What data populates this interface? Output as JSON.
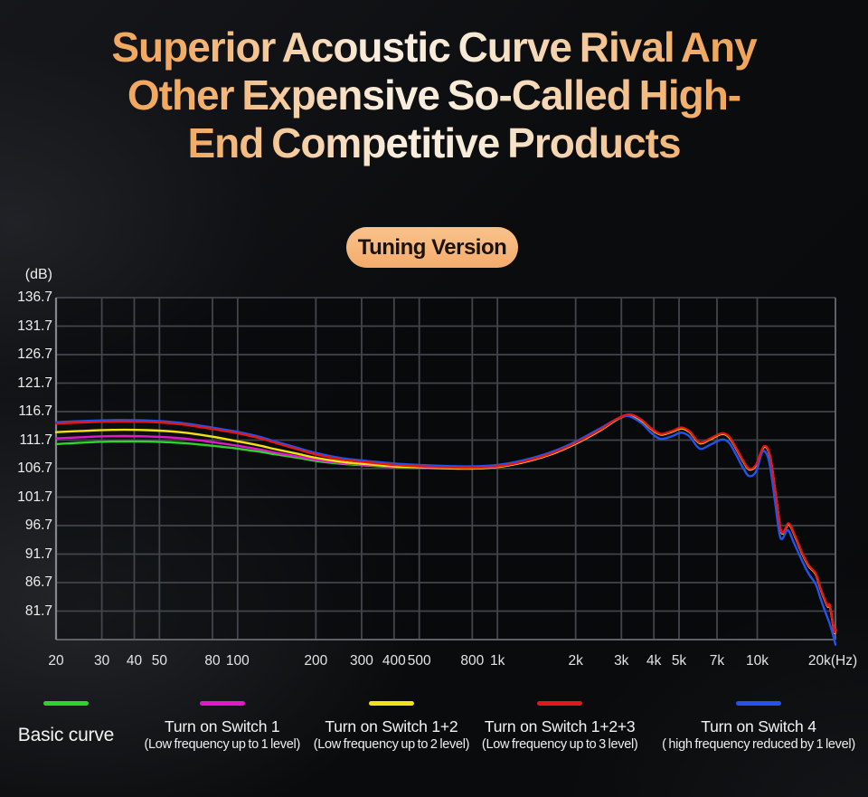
{
  "title": {
    "lines": [
      "Superior Acoustic Curve Rival Any",
      "Other Expensive So-Called High-",
      "End Competitive Products"
    ]
  },
  "badge": {
    "label": "Tuning Version"
  },
  "chart_data": {
    "type": "line",
    "x_scale": "log",
    "grid": true,
    "y_unit_label": "(dB)",
    "x_unit_label": "(Hz)",
    "y_range": [
      76.7,
      136.7
    ],
    "x_range": [
      20,
      20000
    ],
    "y_tick_labels": [
      "136.7",
      "131.7",
      "126.7",
      "121.7",
      "116.7",
      "111.7",
      "106.7",
      "101.7",
      "96.7",
      "91.7",
      "86.7",
      "81.7"
    ],
    "x_ticks": [
      {
        "f": 20,
        "label": "20"
      },
      {
        "f": 30,
        "label": "30"
      },
      {
        "f": 40,
        "label": "40"
      },
      {
        "f": 50,
        "label": "50"
      },
      {
        "f": 80,
        "label": "80"
      },
      {
        "f": 100,
        "label": "100"
      },
      {
        "f": 200,
        "label": "200"
      },
      {
        "f": 300,
        "label": "300"
      },
      {
        "f": 400,
        "label": "400"
      },
      {
        "f": 500,
        "label": "500"
      },
      {
        "f": 800,
        "label": "800"
      },
      {
        "f": 1000,
        "label": "1k"
      },
      {
        "f": 2000,
        "label": "2k"
      },
      {
        "f": 3000,
        "label": "3k"
      },
      {
        "f": 4000,
        "label": "4k"
      },
      {
        "f": 5000,
        "label": "5k"
      },
      {
        "f": 7000,
        "label": "7k"
      },
      {
        "f": 10000,
        "label": "10k"
      },
      {
        "f": 20000,
        "label": "20k"
      }
    ],
    "series": [
      {
        "name": "Basic curve",
        "color": "#2bd52b",
        "merges_with": "Turn on Switch 1+2+3",
        "merge_offset_db": -0.12,
        "points": [
          [
            20,
            111.0
          ],
          [
            25,
            111.25
          ],
          [
            33,
            111.45
          ],
          [
            45,
            111.45
          ],
          [
            60,
            111.2
          ],
          [
            80,
            110.7
          ],
          [
            100,
            110.2
          ],
          [
            120,
            109.7
          ],
          [
            140,
            109.2
          ],
          [
            170,
            108.6
          ],
          [
            200,
            108.05
          ],
          [
            250,
            107.55
          ],
          [
            300,
            107.3
          ],
          [
            400,
            106.95
          ],
          [
            500,
            106.85
          ],
          [
            650,
            106.74
          ],
          [
            800,
            106.7
          ]
        ]
      },
      {
        "name": "Turn on Switch 1",
        "color": "#e318cb",
        "merges_with": "Turn on Switch 1+2+3",
        "merge_offset_db": -0.12,
        "points": [
          [
            20,
            112.0
          ],
          [
            25,
            112.2
          ],
          [
            33,
            112.4
          ],
          [
            45,
            112.35
          ],
          [
            60,
            112.05
          ],
          [
            80,
            111.35
          ],
          [
            100,
            110.7
          ],
          [
            120,
            110.1
          ],
          [
            140,
            109.5
          ],
          [
            170,
            108.85
          ],
          [
            200,
            108.25
          ],
          [
            250,
            107.7
          ],
          [
            300,
            107.4
          ],
          [
            400,
            107.0
          ],
          [
            500,
            106.88
          ],
          [
            650,
            106.76
          ],
          [
            800,
            106.72
          ]
        ]
      },
      {
        "name": "Turn on Switch 1+2",
        "color": "#f2e214",
        "merges_with": "Turn on Switch 1+2+3",
        "merge_offset_db": -0.12,
        "points": [
          [
            20,
            113.1
          ],
          [
            25,
            113.3
          ],
          [
            33,
            113.5
          ],
          [
            45,
            113.45
          ],
          [
            60,
            113.1
          ],
          [
            80,
            112.3
          ],
          [
            100,
            111.5
          ],
          [
            120,
            110.8
          ],
          [
            140,
            110.1
          ],
          [
            170,
            109.3
          ],
          [
            200,
            108.6
          ],
          [
            250,
            107.9
          ],
          [
            300,
            107.55
          ],
          [
            400,
            107.1
          ],
          [
            500,
            106.95
          ],
          [
            650,
            106.78
          ],
          [
            800,
            106.73
          ]
        ]
      },
      {
        "name": "Turn on Switch 4",
        "color": "#2253ee",
        "points": [
          [
            20,
            114.85
          ],
          [
            25,
            115.05
          ],
          [
            33,
            115.2
          ],
          [
            45,
            115.15
          ],
          [
            60,
            114.75
          ],
          [
            80,
            113.9
          ],
          [
            100,
            113.15
          ],
          [
            120,
            112.35
          ],
          [
            140,
            111.45
          ],
          [
            170,
            110.35
          ],
          [
            200,
            109.45
          ],
          [
            250,
            108.55
          ],
          [
            300,
            108.15
          ],
          [
            400,
            107.6
          ],
          [
            500,
            107.35
          ],
          [
            650,
            107.15
          ],
          [
            800,
            107.1
          ],
          [
            1000,
            107.35
          ],
          [
            1250,
            108.15
          ],
          [
            1600,
            109.55
          ],
          [
            2000,
            111.45
          ],
          [
            2500,
            113.85
          ],
          [
            2900,
            115.45
          ],
          [
            3200,
            115.9
          ],
          [
            3600,
            114.6
          ],
          [
            3900,
            113.0
          ],
          [
            4250,
            111.9
          ],
          [
            4700,
            112.4
          ],
          [
            5100,
            113.0
          ],
          [
            5500,
            112.3
          ],
          [
            6000,
            110.2
          ],
          [
            6600,
            110.9
          ],
          [
            7300,
            111.8
          ],
          [
            7800,
            111.2
          ],
          [
            8300,
            109.1
          ],
          [
            8800,
            106.9
          ],
          [
            9300,
            105.4
          ],
          [
            9900,
            106.2
          ],
          [
            10500,
            109.7
          ],
          [
            11100,
            108.0
          ],
          [
            11700,
            101.0
          ],
          [
            12300,
            94.5
          ],
          [
            13100,
            95.9
          ],
          [
            13800,
            93.8
          ],
          [
            15000,
            90.2
          ],
          [
            15800,
            88.2
          ],
          [
            16800,
            86.4
          ],
          [
            17500,
            84.0
          ],
          [
            18300,
            81.5
          ],
          [
            19000,
            79.5
          ],
          [
            19500,
            77.8
          ],
          [
            20000,
            75.8
          ]
        ]
      },
      {
        "name": "Turn on Switch 1+2+3",
        "color": "#e51616",
        "points": [
          [
            20,
            114.6
          ],
          [
            25,
            114.8
          ],
          [
            33,
            114.95
          ],
          [
            45,
            114.9
          ],
          [
            60,
            114.5
          ],
          [
            80,
            113.65
          ],
          [
            100,
            112.9
          ],
          [
            120,
            112.1
          ],
          [
            140,
            111.2
          ],
          [
            170,
            110.1
          ],
          [
            200,
            109.2
          ],
          [
            250,
            108.3
          ],
          [
            300,
            107.9
          ],
          [
            400,
            107.35
          ],
          [
            500,
            107.1
          ],
          [
            650,
            106.9
          ],
          [
            800,
            106.85
          ],
          [
            1000,
            107.1
          ],
          [
            1250,
            107.9
          ],
          [
            1600,
            109.3
          ],
          [
            2000,
            111.2
          ],
          [
            2500,
            113.6
          ],
          [
            2900,
            115.5
          ],
          [
            3250,
            116.2
          ],
          [
            3600,
            115.2
          ],
          [
            3900,
            113.8
          ],
          [
            4250,
            112.8
          ],
          [
            4700,
            113.3
          ],
          [
            5100,
            113.9
          ],
          [
            5500,
            113.2
          ],
          [
            6000,
            111.3
          ],
          [
            6600,
            112.0
          ],
          [
            7300,
            112.9
          ],
          [
            7800,
            112.3
          ],
          [
            8300,
            110.3
          ],
          [
            8800,
            108.2
          ],
          [
            9300,
            106.7
          ],
          [
            9900,
            107.4
          ],
          [
            10600,
            110.6
          ],
          [
            11200,
            109.0
          ],
          [
            11800,
            102.0
          ],
          [
            12400,
            95.6
          ],
          [
            13200,
            97.1
          ],
          [
            13900,
            95.2
          ],
          [
            15000,
            91.6
          ],
          [
            15800,
            89.7
          ],
          [
            16800,
            88.3
          ],
          [
            17500,
            85.8
          ],
          [
            18300,
            83.5
          ],
          [
            18700,
            82.6
          ],
          [
            19000,
            82.8
          ],
          [
            19500,
            80.0
          ],
          [
            19800,
            78.0
          ],
          [
            20000,
            78.5
          ]
        ]
      }
    ]
  },
  "legend": [
    {
      "label": "Basic curve",
      "sub": "",
      "color": "#2bd52b"
    },
    {
      "label": "Turn on Switch 1",
      "sub": "(Low frequency up to 1 level)",
      "color": "#e318cb"
    },
    {
      "label": "Turn on Switch 1+2",
      "sub": "(Low frequency up to 2 level)",
      "color": "#f2e214"
    },
    {
      "label": "Turn on Switch 1+2+3",
      "sub": "(Low frequency up to 3 level)",
      "color": "#e51616"
    },
    {
      "label": "Turn on Switch 4",
      "sub": "( high frequency reduced by 1 level)",
      "color": "#2253ee"
    }
  ]
}
